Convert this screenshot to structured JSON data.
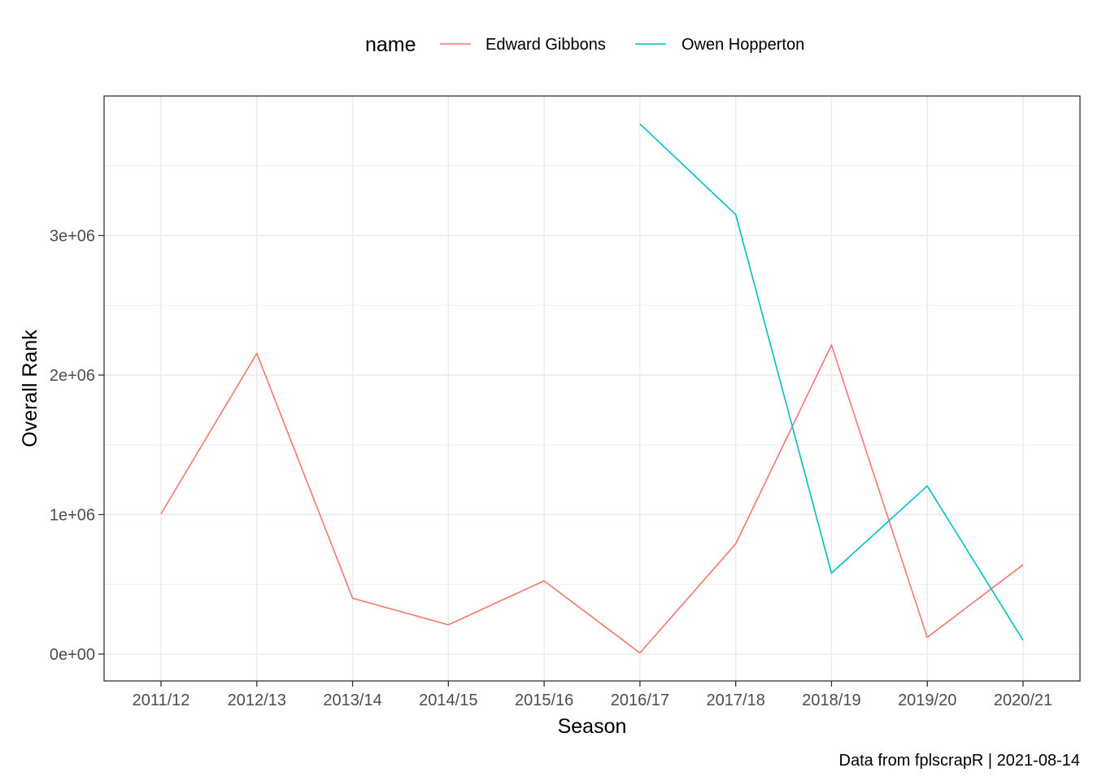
{
  "chart_data": {
    "type": "line",
    "title": "",
    "xlabel": "Season",
    "ylabel": "Overall Rank",
    "caption": "Data from fplscrapR | 2021-08-14",
    "legend": {
      "title": "name",
      "position": "top"
    },
    "x": [
      "2011/12",
      "2012/13",
      "2013/14",
      "2014/15",
      "2015/16",
      "2016/17",
      "2017/18",
      "2018/19",
      "2019/20",
      "2020/21"
    ],
    "y_ticks": [
      {
        "value": 0,
        "label": "0e+00"
      },
      {
        "value": 1000000,
        "label": "1e+06"
      },
      {
        "value": 2000000,
        "label": "2e+06"
      },
      {
        "value": 3000000,
        "label": "3e+06"
      }
    ],
    "ylim": [
      -190000,
      4000000
    ],
    "grid": true,
    "series": [
      {
        "name": "Edward Gibbons",
        "color": "#F8766D",
        "values": [
          1005000,
          2155000,
          400000,
          210000,
          525000,
          8000,
          790000,
          2215000,
          120000,
          640000
        ]
      },
      {
        "name": "Owen Hopperton",
        "color": "#00BFC4",
        "values": [
          null,
          null,
          null,
          null,
          null,
          3800000,
          3150000,
          580000,
          1205000,
          100000
        ]
      }
    ]
  }
}
